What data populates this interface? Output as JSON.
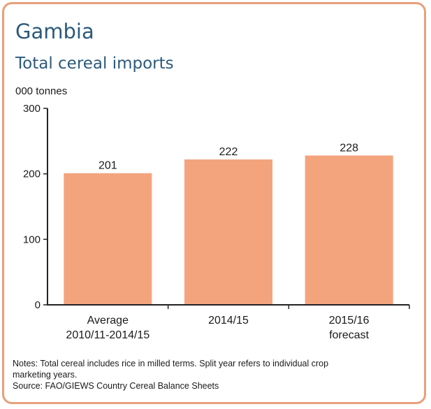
{
  "title": "Gambia",
  "subtitle": "Total cereal imports",
  "unit_label": "000 tonnes",
  "notes": {
    "line1": "Notes: Total cereal includes rice in milled terms. Split year refers to individual crop",
    "line2": "marketing years.",
    "source": "Source: FAO/GIEWS Country Cereal Balance Sheets"
  },
  "colors": {
    "bar": "#f4a47c",
    "border": "#e8a07a",
    "title": "#2c5a7c",
    "axis": "#222222"
  },
  "chart_data": {
    "type": "bar",
    "categories": [
      [
        "Average",
        "2010/11-2014/15"
      ],
      [
        "2014/15"
      ],
      [
        "2015/16",
        "forecast"
      ]
    ],
    "values": [
      201,
      222,
      228
    ],
    "data_labels": [
      "201",
      "222",
      "228"
    ],
    "ylim": [
      0,
      300
    ],
    "yticks": [
      0,
      100,
      200,
      300
    ],
    "ylabel": "000 tonnes",
    "grid": false,
    "legend": "none"
  }
}
